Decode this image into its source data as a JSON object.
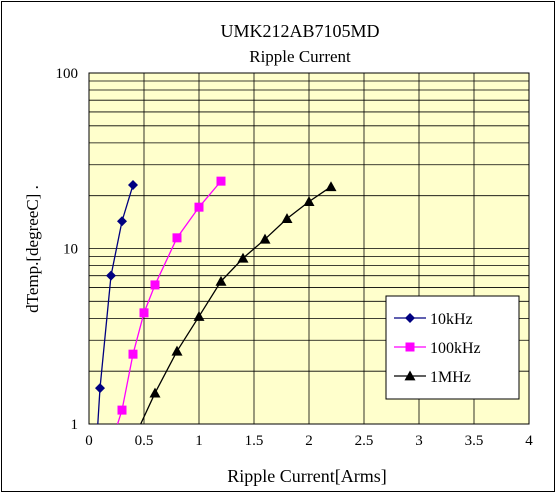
{
  "chart_data": {
    "type": "scatter",
    "title": "UMK212AB7105MD",
    "subtitle": "Ripple Current",
    "xlabel": "Ripple Current[Arms]",
    "ylabel": "dTemp.[degreeC] .",
    "xlim": [
      0,
      4
    ],
    "ylim": [
      1,
      100
    ],
    "yscale": "log",
    "grid": true,
    "legend_position": "bottom-right",
    "x_ticks": [
      "0",
      "0.5",
      "1",
      "1.5",
      "2",
      "2.5",
      "3",
      "3.5",
      "4"
    ],
    "y_ticks": [
      "1",
      "10",
      "100"
    ],
    "plot_background": "#ffffcc",
    "series": [
      {
        "name": "10kHz",
        "color": "#000080",
        "marker": "diamond",
        "points": [
          [
            0.08,
            1.0
          ],
          [
            0.1,
            1.6
          ],
          [
            0.2,
            7.0
          ],
          [
            0.3,
            14.3
          ],
          [
            0.4,
            23.0
          ]
        ]
      },
      {
        "name": "100kHz",
        "color": "#ff00ff",
        "marker": "square",
        "points": [
          [
            0.26,
            1.0
          ],
          [
            0.3,
            1.2
          ],
          [
            0.4,
            2.5
          ],
          [
            0.5,
            4.3
          ],
          [
            0.6,
            6.2
          ],
          [
            0.8,
            11.5
          ],
          [
            1.0,
            17.2
          ],
          [
            1.2,
            24.2
          ]
        ]
      },
      {
        "name": "1MHz",
        "color": "#000000",
        "marker": "triangle",
        "points": [
          [
            0.47,
            1.0
          ],
          [
            0.6,
            1.5
          ],
          [
            0.8,
            2.6
          ],
          [
            1.0,
            4.1
          ],
          [
            1.2,
            6.5
          ],
          [
            1.4,
            8.8
          ],
          [
            1.6,
            11.3
          ],
          [
            1.8,
            14.8
          ],
          [
            2.0,
            18.5
          ],
          [
            2.2,
            22.5
          ]
        ]
      }
    ]
  }
}
